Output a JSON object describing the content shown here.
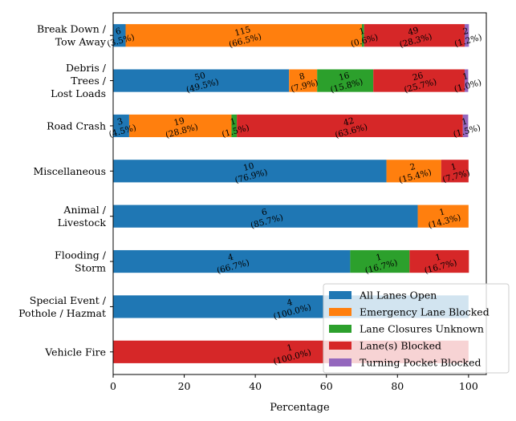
{
  "chart_data": {
    "type": "bar",
    "orientation": "horizontal",
    "stacked": true,
    "title": "",
    "xlabel": "Percentage",
    "ylabel": "",
    "xlim": [
      0,
      105
    ],
    "xticks": [
      0,
      20,
      40,
      60,
      80,
      100
    ],
    "grid": false,
    "legend_position": "bottom-right",
    "categories": [
      [
        "Break Down /",
        "Tow Away"
      ],
      [
        "Debris /",
        "Trees /",
        "Lost Loads"
      ],
      [
        "Road Crash"
      ],
      [
        "Miscellaneous"
      ],
      [
        "Animal /",
        "Livestock"
      ],
      [
        "Flooding /",
        "Storm"
      ],
      [
        "Special Event /",
        "Pothole / Hazmat"
      ],
      [
        "Vehicle Fire"
      ]
    ],
    "series": [
      {
        "name": "All Lanes Open",
        "color": "#1f77b4",
        "counts": [
          6,
          50,
          3,
          10,
          6,
          4,
          4,
          0
        ],
        "percent": [
          3.5,
          49.5,
          4.5,
          76.9,
          85.7,
          66.7,
          100.0,
          0
        ],
        "labels": [
          "6\n(3.5%)",
          "50\n(49.5%)",
          "3\n(4.5%)",
          "10\n(76.9%)",
          "6\n(85.7%)",
          "4\n(66.7%)",
          "4\n(100.0%)",
          ""
        ]
      },
      {
        "name": "Emergency Lane Blocked",
        "color": "#ff7f0e",
        "counts": [
          115,
          8,
          19,
          2,
          1,
          0,
          0,
          0
        ],
        "percent": [
          66.5,
          7.9,
          28.8,
          15.4,
          14.3,
          0,
          0,
          0
        ],
        "labels": [
          "115\n(66.5%)",
          "8\n(7.9%)",
          "19\n(28.8%)",
          "2\n(15.4%)",
          "1\n(14.3%)",
          "",
          "",
          ""
        ]
      },
      {
        "name": "Lane Closures Unknown",
        "color": "#2ca02c",
        "counts": [
          1,
          16,
          1,
          0,
          0,
          1,
          0,
          0
        ],
        "percent": [
          0.6,
          15.8,
          1.5,
          0,
          0,
          16.7,
          0,
          0
        ],
        "labels": [
          "1\n(0.6%)",
          "16\n(15.8%)",
          "1\n(1.5%)",
          "",
          "",
          "1\n(16.7%)",
          "",
          ""
        ]
      },
      {
        "name": "Lane(s) Blocked",
        "color": "#d62728",
        "counts": [
          49,
          26,
          42,
          1,
          0,
          1,
          0,
          1
        ],
        "percent": [
          28.3,
          25.7,
          63.6,
          7.7,
          0,
          16.7,
          0,
          100.0
        ],
        "labels": [
          "49\n(28.3%)",
          "26\n(25.7%)",
          "42\n(63.6%)",
          "1\n(7.7%)",
          "",
          "1\n(16.7%)",
          "",
          "1\n(100.0%)"
        ]
      },
      {
        "name": "Turning Pocket Blocked",
        "color": "#9467bd",
        "counts": [
          2,
          1,
          1,
          0,
          0,
          0,
          0,
          0
        ],
        "percent": [
          1.2,
          1.0,
          1.5,
          0,
          0,
          0,
          0,
          0
        ],
        "labels": [
          "2\n(1.2%)",
          "1\n(1.0%)",
          "1\n(1.5%)",
          "",
          "",
          "",
          "",
          ""
        ]
      }
    ]
  }
}
